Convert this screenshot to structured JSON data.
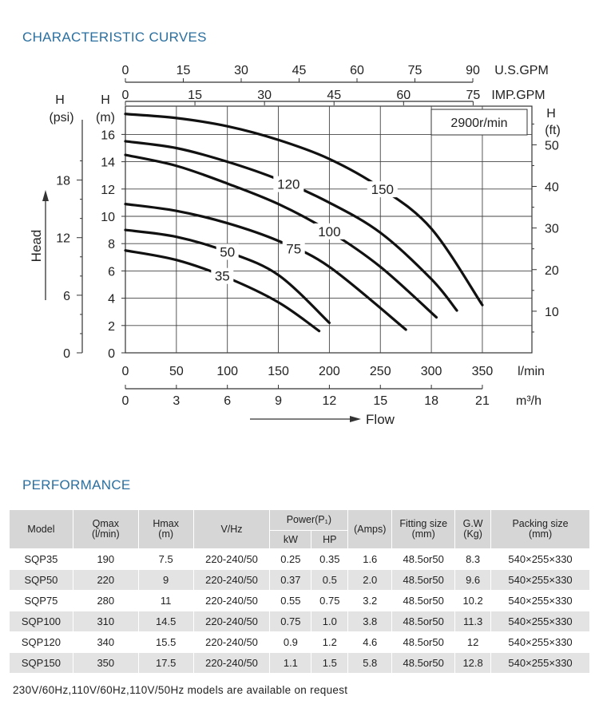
{
  "sections": {
    "curves_title": "CHARACTERISTIC CURVES",
    "performance_title": "PERFORMANCE"
  },
  "chart_data": {
    "type": "line",
    "speed_label": "2900r/min",
    "xlabel": "Flow",
    "x_unit_primary": "l/min",
    "x_unit_m3h": "m³/h",
    "x_unit_usgpm": "U.S.GPM",
    "x_unit_impgpm": "IMP.GPM",
    "ylabel": "Head",
    "y_left_psi_label": [
      "H",
      "(psi)"
    ],
    "y_left_m_label": [
      "H",
      "(m)"
    ],
    "y_right_ft_label": [
      "H",
      "(ft)"
    ],
    "xlim": [
      0,
      400
    ],
    "ylim": [
      0,
      18
    ],
    "x_ticks_lmin": [
      "0",
      "50",
      "100",
      "150",
      "200",
      "250",
      "300",
      "350"
    ],
    "x_ticks_m3h": [
      "0",
      "3",
      "6",
      "9",
      "12",
      "15",
      "18",
      "21"
    ],
    "x_ticks_usgpm": [
      "0",
      "15",
      "30",
      "45",
      "60",
      "75",
      "90"
    ],
    "x_ticks_impgpm": [
      "0",
      "15",
      "30",
      "45",
      "60",
      "75"
    ],
    "y_ticks_m": [
      "0",
      "2",
      "4",
      "6",
      "8",
      "10",
      "12",
      "14",
      "16"
    ],
    "y_ticks_psi": [
      "0",
      "6",
      "12",
      "18"
    ],
    "y_ticks_ft": [
      "10",
      "20",
      "30",
      "40",
      "50"
    ],
    "series": [
      {
        "name": "35",
        "x": [
          0,
          50,
          100,
          150,
          190
        ],
        "y": [
          7.5,
          6.8,
          5.5,
          3.7,
          1.6
        ]
      },
      {
        "name": "50",
        "x": [
          0,
          50,
          100,
          150,
          200
        ],
        "y": [
          9.0,
          8.5,
          7.4,
          5.7,
          2.2
        ]
      },
      {
        "name": "75",
        "x": [
          0,
          50,
          100,
          150,
          200,
          275
        ],
        "y": [
          10.9,
          10.4,
          9.5,
          8.2,
          6.3,
          1.7
        ]
      },
      {
        "name": "100",
        "x": [
          0,
          50,
          100,
          150,
          200,
          250,
          305
        ],
        "y": [
          14.5,
          13.7,
          12.4,
          10.9,
          8.9,
          6.3,
          2.6
        ]
      },
      {
        "name": "120",
        "x": [
          0,
          50,
          100,
          150,
          200,
          250,
          300,
          325
        ],
        "y": [
          15.5,
          15.0,
          14.0,
          12.7,
          11.0,
          8.8,
          5.4,
          3.1
        ]
      },
      {
        "name": "150",
        "x": [
          0,
          50,
          100,
          150,
          200,
          250,
          300,
          350
        ],
        "y": [
          17.5,
          17.2,
          16.6,
          15.6,
          14.2,
          12.1,
          9.1,
          3.5
        ]
      }
    ]
  },
  "performance": {
    "headers": {
      "model": "Model",
      "qmax": [
        "Qmax",
        "(l/min)"
      ],
      "hmax": [
        "Hmax",
        "(m)"
      ],
      "vhz": "V/Hz",
      "power": "Power(P₁)",
      "kw": "kW",
      "hp": "HP",
      "amps": "(Amps)",
      "fitting": [
        "Fitting size",
        "(mm)"
      ],
      "gw": [
        "G.W",
        "(Kg)"
      ],
      "packing": [
        "Packing size",
        "(mm)"
      ]
    },
    "rows": [
      [
        "SQP35",
        "190",
        "7.5",
        "220-240/50",
        "0.25",
        "0.35",
        "1.6",
        "48.5or50",
        "8.3",
        "540×255×330"
      ],
      [
        "SQP50",
        "220",
        "9",
        "220-240/50",
        "0.37",
        "0.5",
        "2.0",
        "48.5or50",
        "9.6",
        "540×255×330"
      ],
      [
        "SQP75",
        "280",
        "11",
        "220-240/50",
        "0.55",
        "0.75",
        "3.2",
        "48.5or50",
        "10.2",
        "540×255×330"
      ],
      [
        "SQP100",
        "310",
        "14.5",
        "220-240/50",
        "0.75",
        "1.0",
        "3.8",
        "48.5or50",
        "11.3",
        "540×255×330"
      ],
      [
        "SQP120",
        "340",
        "15.5",
        "220-240/50",
        "0.9",
        "1.2",
        "4.6",
        "48.5or50",
        "12",
        "540×255×330"
      ],
      [
        "SQP150",
        "350",
        "17.5",
        "220-240/50",
        "1.1",
        "1.5",
        "5.8",
        "48.5or50",
        "12.8",
        "540×255×330"
      ]
    ],
    "footnote": "230V/60Hz,110V/60Hz,110V/50Hz models are available on request"
  }
}
